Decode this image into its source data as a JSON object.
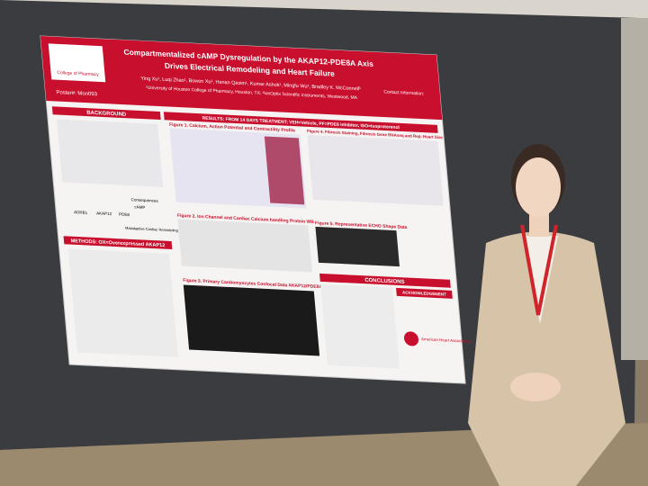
{
  "poster": {
    "logo_text": "College of Pharmacy",
    "title_line1": "Compartmentalized cAMP Dysregulation by the AKAP12-PDE8A Axis",
    "title_line2": "Drives Electrical Remodeling and Heart Failure",
    "authors": "Ying Xu¹, Luqi Zhao¹, Bowen Xu¹, Hanan Qasim¹, Kumar Ashok¹, Mingfu Wu¹, Bradley K. McConnell¹",
    "affiliation": "¹University of Houston College of Pharmacy, Houston, TX; ²IonOptix Scientific Instruments, Westwood, MA",
    "poster_number": "Poster#: Mon093",
    "contact": "Contact Information:",
    "sections": {
      "background": "BACKGROUND",
      "results": "RESULTS: FROM 14 DAYS TREATMENT; VEH=Vehicle, PF=PDE8 inhibitor, ISO=Isoproterenol",
      "methods": "METHODS: OX=Overexpressed AKAP12",
      "conclusions": "CONCLUSIONS",
      "acknowledgement": "ACKNOWLEDGEMENT"
    },
    "figures": [
      "Figure 1. Calcium, Action Potential and Contractility Profile",
      "Figure 2. Ion Channel and Cardiac Calcium handling Protein WB",
      "Figure 3. Primary Cardiomyocytes Confocal Data AKAP12/PDE8A",
      "Figure 4. Fibrosis Staining, Fibrosis Gene RNAseq and Rep. Heart Size",
      "Figure 5. Representative ECHO Shape Data"
    ],
    "background_labels": [
      "Consequences",
      "ADRB1",
      "AKAP12",
      "PDE8",
      "cAMP",
      "Maladaptive Cardiac Remodeling"
    ],
    "sponsor": "American Heart Association."
  }
}
